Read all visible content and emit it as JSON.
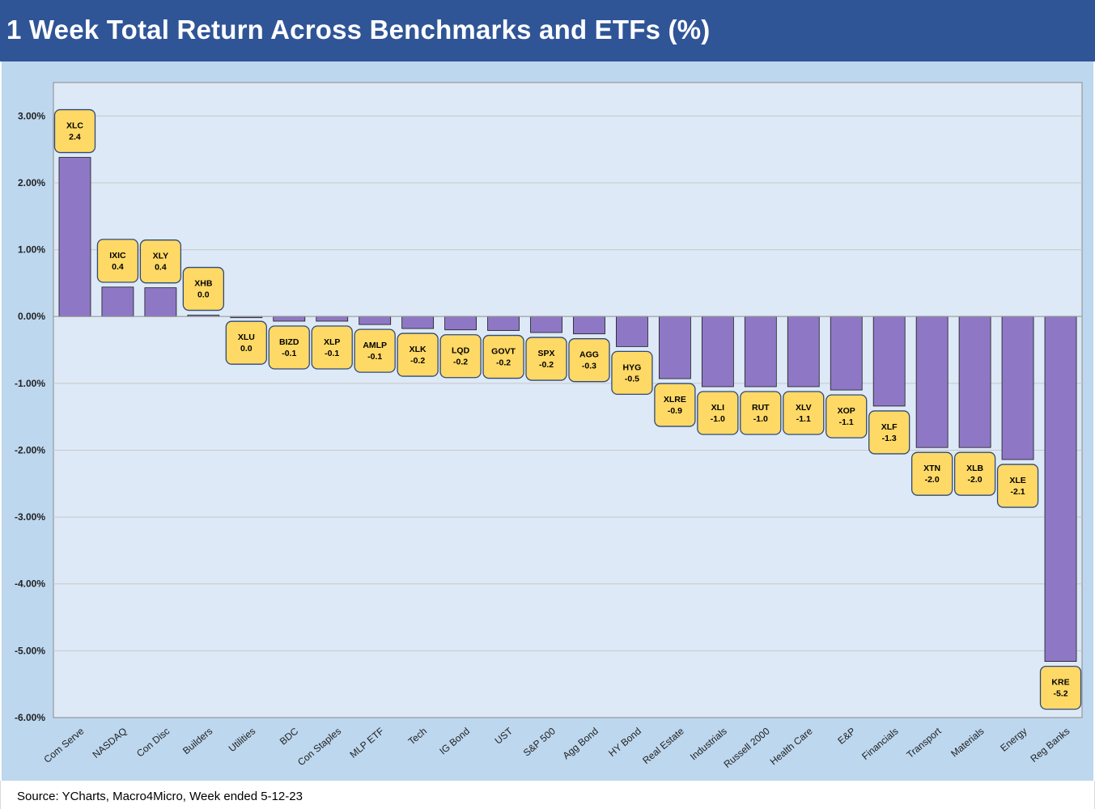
{
  "title": "1 Week Total Return Across Benchmarks and ETFs (%)",
  "footer": {
    "source": "Source: YCharts, Macro4Micro, Week ended 5-12-23"
  },
  "colors": {
    "header_bg": "#2f5597",
    "outer_bg": "#bdd7ee",
    "plot_bg": "#dde9f6",
    "bar_fill": "#8e78c6",
    "label_fill": "#ffd966",
    "label_border": "#2e4a7a"
  },
  "chart_data": {
    "type": "bar",
    "title": "1 Week Total Return Across Benchmarks and ETFs (%)",
    "ylim": [
      -6,
      3.5
    ],
    "yticks": [
      3,
      2,
      1,
      0,
      -1,
      -2,
      -3,
      -4,
      -5,
      -6
    ],
    "ytick_labels": [
      "3.00%",
      "2.00%",
      "1.00%",
      "0.00%",
      "-1.00%",
      "-2.00%",
      "-3.00%",
      "-4.00%",
      "-5.00%",
      "-6.00%"
    ],
    "grid": true,
    "categories": [
      "Com Serve",
      "NASDAQ",
      "Con Disc",
      "Builders",
      "Utilities",
      "BDC",
      "Con Staples",
      "MLP ETF",
      "Tech",
      "IG Bond",
      "UST",
      "S&P 500",
      "Agg Bond",
      "HY Bond",
      "Real Estate",
      "Industrials",
      "Russell 2000",
      "Health Care",
      "E&P",
      "Financials",
      "Transport",
      "Materials",
      "Energy",
      "Reg Banks"
    ],
    "tickers": [
      "XLC",
      "IXIC",
      "XLY",
      "XHB",
      "XLU",
      "BIZD",
      "XLP",
      "AMLP",
      "XLK",
      "LQD",
      "GOVT",
      "SPX",
      "AGG",
      "HYG",
      "XLRE",
      "XLI",
      "RUT",
      "XLV",
      "XOP",
      "XLF",
      "XTN",
      "XLB",
      "XLE",
      "KRE"
    ],
    "values": [
      2.38,
      0.44,
      0.43,
      0.02,
      0.0,
      -0.07,
      -0.07,
      -0.12,
      -0.18,
      -0.2,
      -0.21,
      -0.24,
      -0.26,
      -0.45,
      -0.93,
      -1.05,
      -1.05,
      -1.05,
      -1.1,
      -1.34,
      -1.96,
      -1.96,
      -2.14,
      -5.16
    ],
    "value_labels": [
      "2.4",
      "0.4",
      "0.4",
      "0.0",
      "0.0",
      "-0.1",
      "-0.1",
      "-0.1",
      "-0.2",
      "-0.2",
      "-0.2",
      "-0.2",
      "-0.3",
      "-0.5",
      "-0.9",
      "-1.0",
      "-1.0",
      "-1.1",
      "-1.1",
      "-1.3",
      "-2.0",
      "-2.0",
      "-2.1",
      "-5.2"
    ]
  }
}
